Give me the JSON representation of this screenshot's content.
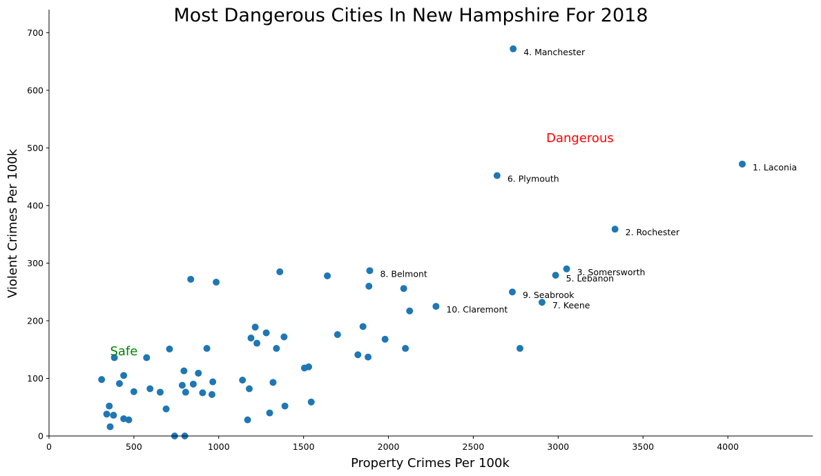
{
  "chart_data": {
    "type": "scatter",
    "title": "Most Dangerous Cities In New Hampshire For 2018",
    "xlabel": "Property Crimes Per 100k",
    "ylabel": "Violent Crimes Per 100k",
    "xlim": [
      0,
      4500
    ],
    "ylim": [
      0,
      740
    ],
    "xticks": [
      0,
      500,
      1000,
      1500,
      2000,
      2500,
      3000,
      3500,
      4000
    ],
    "yticks": [
      0,
      100,
      200,
      300,
      400,
      500,
      600,
      700
    ],
    "grid": false,
    "point_color": "#1f77b4",
    "annotations": [
      {
        "text": "Dangerous",
        "x": 2930,
        "y": 510,
        "color": "#ff0000"
      },
      {
        "text": "Safe",
        "x": 360,
        "y": 140,
        "color": "#008000"
      }
    ],
    "points": [
      {
        "x": 4085,
        "y": 472,
        "label": "1. Laconia"
      },
      {
        "x": 3335,
        "y": 359,
        "label": "2. Rochester"
      },
      {
        "x": 3050,
        "y": 290,
        "label": "3. Somersworth"
      },
      {
        "x": 2735,
        "y": 672,
        "label": "4. Manchester"
      },
      {
        "x": 2985,
        "y": 279,
        "label": "5. Lebanon"
      },
      {
        "x": 2640,
        "y": 452,
        "label": "6. Plymouth"
      },
      {
        "x": 2905,
        "y": 232,
        "label": "7. Keene"
      },
      {
        "x": 1890,
        "y": 287,
        "label": "8. Belmont"
      },
      {
        "x": 2730,
        "y": 250,
        "label": "9. Seabrook"
      },
      {
        "x": 2280,
        "y": 225,
        "label": "10. Claremont"
      },
      {
        "x": 2775,
        "y": 152
      },
      {
        "x": 2090,
        "y": 256
      },
      {
        "x": 2125,
        "y": 217
      },
      {
        "x": 1980,
        "y": 168
      },
      {
        "x": 2100,
        "y": 152
      },
      {
        "x": 1885,
        "y": 260
      },
      {
        "x": 1850,
        "y": 190
      },
      {
        "x": 1820,
        "y": 141
      },
      {
        "x": 1880,
        "y": 137
      },
      {
        "x": 1700,
        "y": 176
      },
      {
        "x": 1640,
        "y": 278
      },
      {
        "x": 1530,
        "y": 120
      },
      {
        "x": 1505,
        "y": 118
      },
      {
        "x": 1545,
        "y": 59
      },
      {
        "x": 1360,
        "y": 285
      },
      {
        "x": 1385,
        "y": 172
      },
      {
        "x": 1340,
        "y": 152
      },
      {
        "x": 1390,
        "y": 52
      },
      {
        "x": 1320,
        "y": 93
      },
      {
        "x": 1300,
        "y": 40
      },
      {
        "x": 1280,
        "y": 179
      },
      {
        "x": 1215,
        "y": 189
      },
      {
        "x": 1190,
        "y": 170
      },
      {
        "x": 1225,
        "y": 161
      },
      {
        "x": 1140,
        "y": 97
      },
      {
        "x": 1180,
        "y": 82
      },
      {
        "x": 1170,
        "y": 28
      },
      {
        "x": 985,
        "y": 267
      },
      {
        "x": 835,
        "y": 272
      },
      {
        "x": 930,
        "y": 152
      },
      {
        "x": 965,
        "y": 94
      },
      {
        "x": 960,
        "y": 72
      },
      {
        "x": 880,
        "y": 109
      },
      {
        "x": 905,
        "y": 75
      },
      {
        "x": 850,
        "y": 90
      },
      {
        "x": 795,
        "y": 113
      },
      {
        "x": 785,
        "y": 88
      },
      {
        "x": 805,
        "y": 76
      },
      {
        "x": 710,
        "y": 151
      },
      {
        "x": 655,
        "y": 76
      },
      {
        "x": 690,
        "y": 47
      },
      {
        "x": 740,
        "y": 0
      },
      {
        "x": 800,
        "y": 0
      },
      {
        "x": 575,
        "y": 136
      },
      {
        "x": 595,
        "y": 82
      },
      {
        "x": 500,
        "y": 77
      },
      {
        "x": 440,
        "y": 105
      },
      {
        "x": 415,
        "y": 91
      },
      {
        "x": 385,
        "y": 136
      },
      {
        "x": 310,
        "y": 98
      },
      {
        "x": 355,
        "y": 52
      },
      {
        "x": 340,
        "y": 38
      },
      {
        "x": 380,
        "y": 36
      },
      {
        "x": 440,
        "y": 30
      },
      {
        "x": 470,
        "y": 28
      },
      {
        "x": 360,
        "y": 16
      }
    ]
  }
}
